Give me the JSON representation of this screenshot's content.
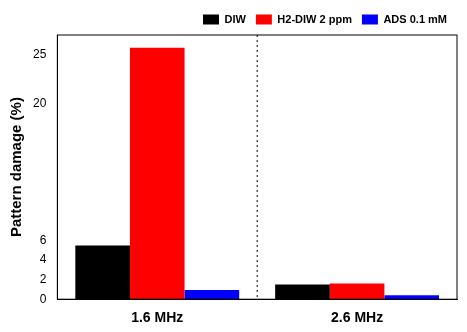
{
  "chart_data": {
    "type": "bar",
    "categories": [
      "1.6 MHz",
      "2.6 MHz"
    ],
    "y_label": "Pattern damage (%)",
    "series": [
      {
        "name": "DIW",
        "color": "#000000",
        "values": [
          5.5,
          1.5
        ]
      },
      {
        "name": "H2-DIW 2 ppm",
        "color": "#ff0000",
        "values": [
          25.7,
          1.6
        ]
      },
      {
        "name": "ADS 0.1 mM",
        "color": "#0000ff",
        "values": [
          0.95,
          0.4
        ]
      }
    ],
    "ylim": [
      0,
      27
    ],
    "yticks": [
      0,
      2,
      4,
      6,
      20,
      25
    ],
    "grid": false,
    "legend": "upper right"
  }
}
